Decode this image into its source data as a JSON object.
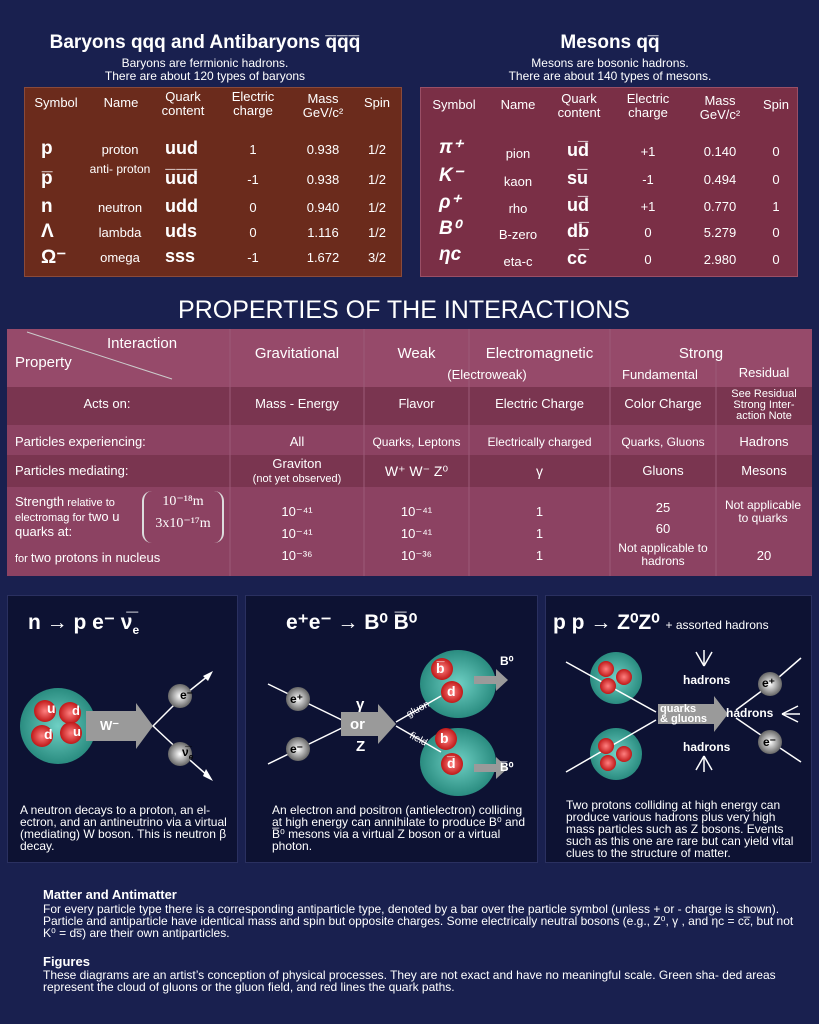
{
  "baryons": {
    "title": "Baryons qqq and Antibaryons q̅q̅q̅",
    "subtitle1": "Baryons are fermionic hadrons.",
    "subtitle2": "There are about 120 types of baryons",
    "headers": {
      "symbol": "Symbol",
      "name": "Name",
      "quark": "Quark content",
      "charge": "Electric charge",
      "mass": "Mass GeV/c²",
      "spin": "Spin"
    },
    "rows": [
      {
        "symbol": "p",
        "name": "proton",
        "quark": "uud",
        "charge": "1",
        "mass": "0.938",
        "spin": "1/2"
      },
      {
        "symbol": "p̅",
        "name": "anti- proton",
        "quark": "u̅u̅d̅",
        "charge": "-1",
        "mass": "0.938",
        "spin": "1/2"
      },
      {
        "symbol": "n",
        "name": "neutron",
        "quark": "udd",
        "charge": "0",
        "mass": "0.940",
        "spin": "1/2"
      },
      {
        "symbol": "Λ",
        "name": "lambda",
        "quark": "uds",
        "charge": "0",
        "mass": "1.116",
        "spin": "1/2"
      },
      {
        "symbol": "Ω⁻",
        "name": "omega",
        "quark": "sss",
        "charge": "-1",
        "mass": "1.672",
        "spin": "3/2"
      }
    ]
  },
  "mesons": {
    "title": "Mesons qq̅",
    "subtitle1": "Mesons are bosonic hadrons.",
    "subtitle2": "There are about 140 types of mesons.",
    "headers": {
      "symbol": "Symbol",
      "name": "Name",
      "quark": "Quark content",
      "charge": "Electric charge",
      "mass": "Mass GeV/c²",
      "spin": "Spin"
    },
    "rows": [
      {
        "symbol": "π⁺",
        "name": "pion",
        "quark": "ud̅",
        "charge": "+1",
        "mass": "0.140",
        "spin": "0"
      },
      {
        "symbol": "K⁻",
        "name": "kaon",
        "quark": "su̅",
        "charge": "-1",
        "mass": "0.494",
        "spin": "0"
      },
      {
        "symbol": "ρ⁺",
        "name": "rho",
        "quark": "ud̅",
        "charge": "+1",
        "mass": "0.770",
        "spin": "1"
      },
      {
        "symbol": "B⁰",
        "name": "B-zero",
        "quark": "db̅",
        "charge": "0",
        "mass": "5.279",
        "spin": "0"
      },
      {
        "symbol": "ηc",
        "name": "eta-c",
        "quark": "cc̅",
        "charge": "0",
        "mass": "2.980",
        "spin": "0"
      }
    ]
  },
  "interactions": {
    "title": "PROPERTIES OF THE INTERACTIONS",
    "corner_top": "Interaction",
    "corner_bottom": "Property",
    "cols": {
      "grav": "Gravitational",
      "weak": "Weak",
      "em": "Electromagnetic",
      "electroweak": "(Electroweak)",
      "strong": "Strong",
      "fund": "Fundamental",
      "resid": "Residual"
    },
    "rows": {
      "acts": {
        "label": "Acts on:",
        "grav": "Mass - Energy",
        "weak": "Flavor",
        "em": "Electric Charge",
        "fund": "Color Charge",
        "resid": "See Residual Strong Inter- action Note"
      },
      "exp": {
        "label": "Particles experiencing:",
        "grav": "All",
        "weak": "Quarks, Leptons",
        "em": "Electrically charged",
        "fund": "Quarks, Gluons",
        "resid": "Hadrons"
      },
      "med": {
        "label": "Particles mediating:",
        "grav": "Graviton",
        "grav2": "(not yet observed)",
        "weak": "W⁺ W⁻ Z⁰",
        "em": "γ",
        "fund": "Gluons",
        "resid": "Mesons"
      },
      "str": {
        "l1": "Strength",
        "l1b": " relative to",
        "l2": "electromag for ",
        "l2b": "two u",
        "l3": "quarks at:",
        "d1": "10⁻¹⁸m",
        "d2": "3x10⁻¹⁷m",
        "l4": "for ",
        "l4b": "two protons in nucleus",
        "grav": [
          "10⁻⁴¹",
          "10⁻⁴¹",
          "10⁻³⁶"
        ],
        "weak": [
          "10⁻⁴¹",
          "10⁻⁴¹",
          "10⁻³⁶"
        ],
        "em": [
          "1",
          "1",
          "1"
        ],
        "fund": [
          "25",
          "60",
          "Not applicable to hadrons"
        ],
        "resid": [
          "Not applicable to quarks",
          "20"
        ]
      }
    }
  },
  "diagrams": [
    {
      "eq": "n → p e⁻ ν̅",
      "eq_sub": "e",
      "caption": "A neutron decays to a proton, an el- ectron, and an antineutrino via a virtual (mediating) W boson. This is neutron β decay.",
      "labels": {
        "w": "W⁻",
        "e": "e⁻",
        "nu": "ν̅",
        "nu_sub": "e",
        "q1": "u",
        "q2": "d",
        "q3": "d",
        "q4": "u",
        "q5": "d"
      }
    },
    {
      "eq": "e⁺e⁻ → B⁰ B̅⁰",
      "caption": "An electron and positron (antielectron) colliding at high energy can annihilate to produce B⁰ and B̅⁰ mesons via a virtual Z boson or a virtual photon.",
      "labels": {
        "ep": "e⁺",
        "em": "e⁻",
        "gamma": "γ",
        "or": "or",
        "z": "Z",
        "gluon": "gluon",
        "field": "field",
        "b0": "B⁰",
        "b0bar": "B̅⁰",
        "bbar": "b̅",
        "d": "d",
        "b": "b",
        "dbar": "d̅"
      }
    },
    {
      "eq": "p p → Z⁰Z⁰",
      "eq_small": "+ assorted hadrons",
      "caption": "Two protons colliding at high energy can produce various hadrons plus very high mass particles such as Z bosons. Events such as this one are rare but can yield vital clues to the structure of matter.",
      "labels": {
        "h1": "hadrons",
        "h2": "hadrons",
        "h3": "hadrons",
        "qg1": "quarks",
        "qg2": "& gluons",
        "ep": "e⁺",
        "em": "e⁻",
        "u": "u",
        "d": "d"
      }
    }
  ],
  "footer": {
    "h1": "Matter and Antimatter",
    "p1": "For every particle type there is a corresponding antiparticle type, denoted by a bar over the particle symbol (unless + or - charge is shown). Particle and antiparticle have identical mass and spin but opposite charges. Some electrically neutral bosons (e.g., Z⁰, γ , and  ηc = cc̅, but not K⁰ = ds̅) are their own antiparticles.",
    "h2": "Figures",
    "p2": "These diagrams are an artist’s conception of physical processes. They are not exact and have no meaningful scale. Green sha- ded areas represent the cloud of gluons or the gluon field, and red lines the quark paths."
  },
  "colors": {
    "bg": "#19204f",
    "baryon_panel": "#6b2b1c",
    "meson_panel": "#7a2f46",
    "interaction_table": "#7a3550",
    "gluon_cloud": "#3fa59a",
    "quark": "#e33b3b",
    "arrow": "#9a9a9a"
  }
}
